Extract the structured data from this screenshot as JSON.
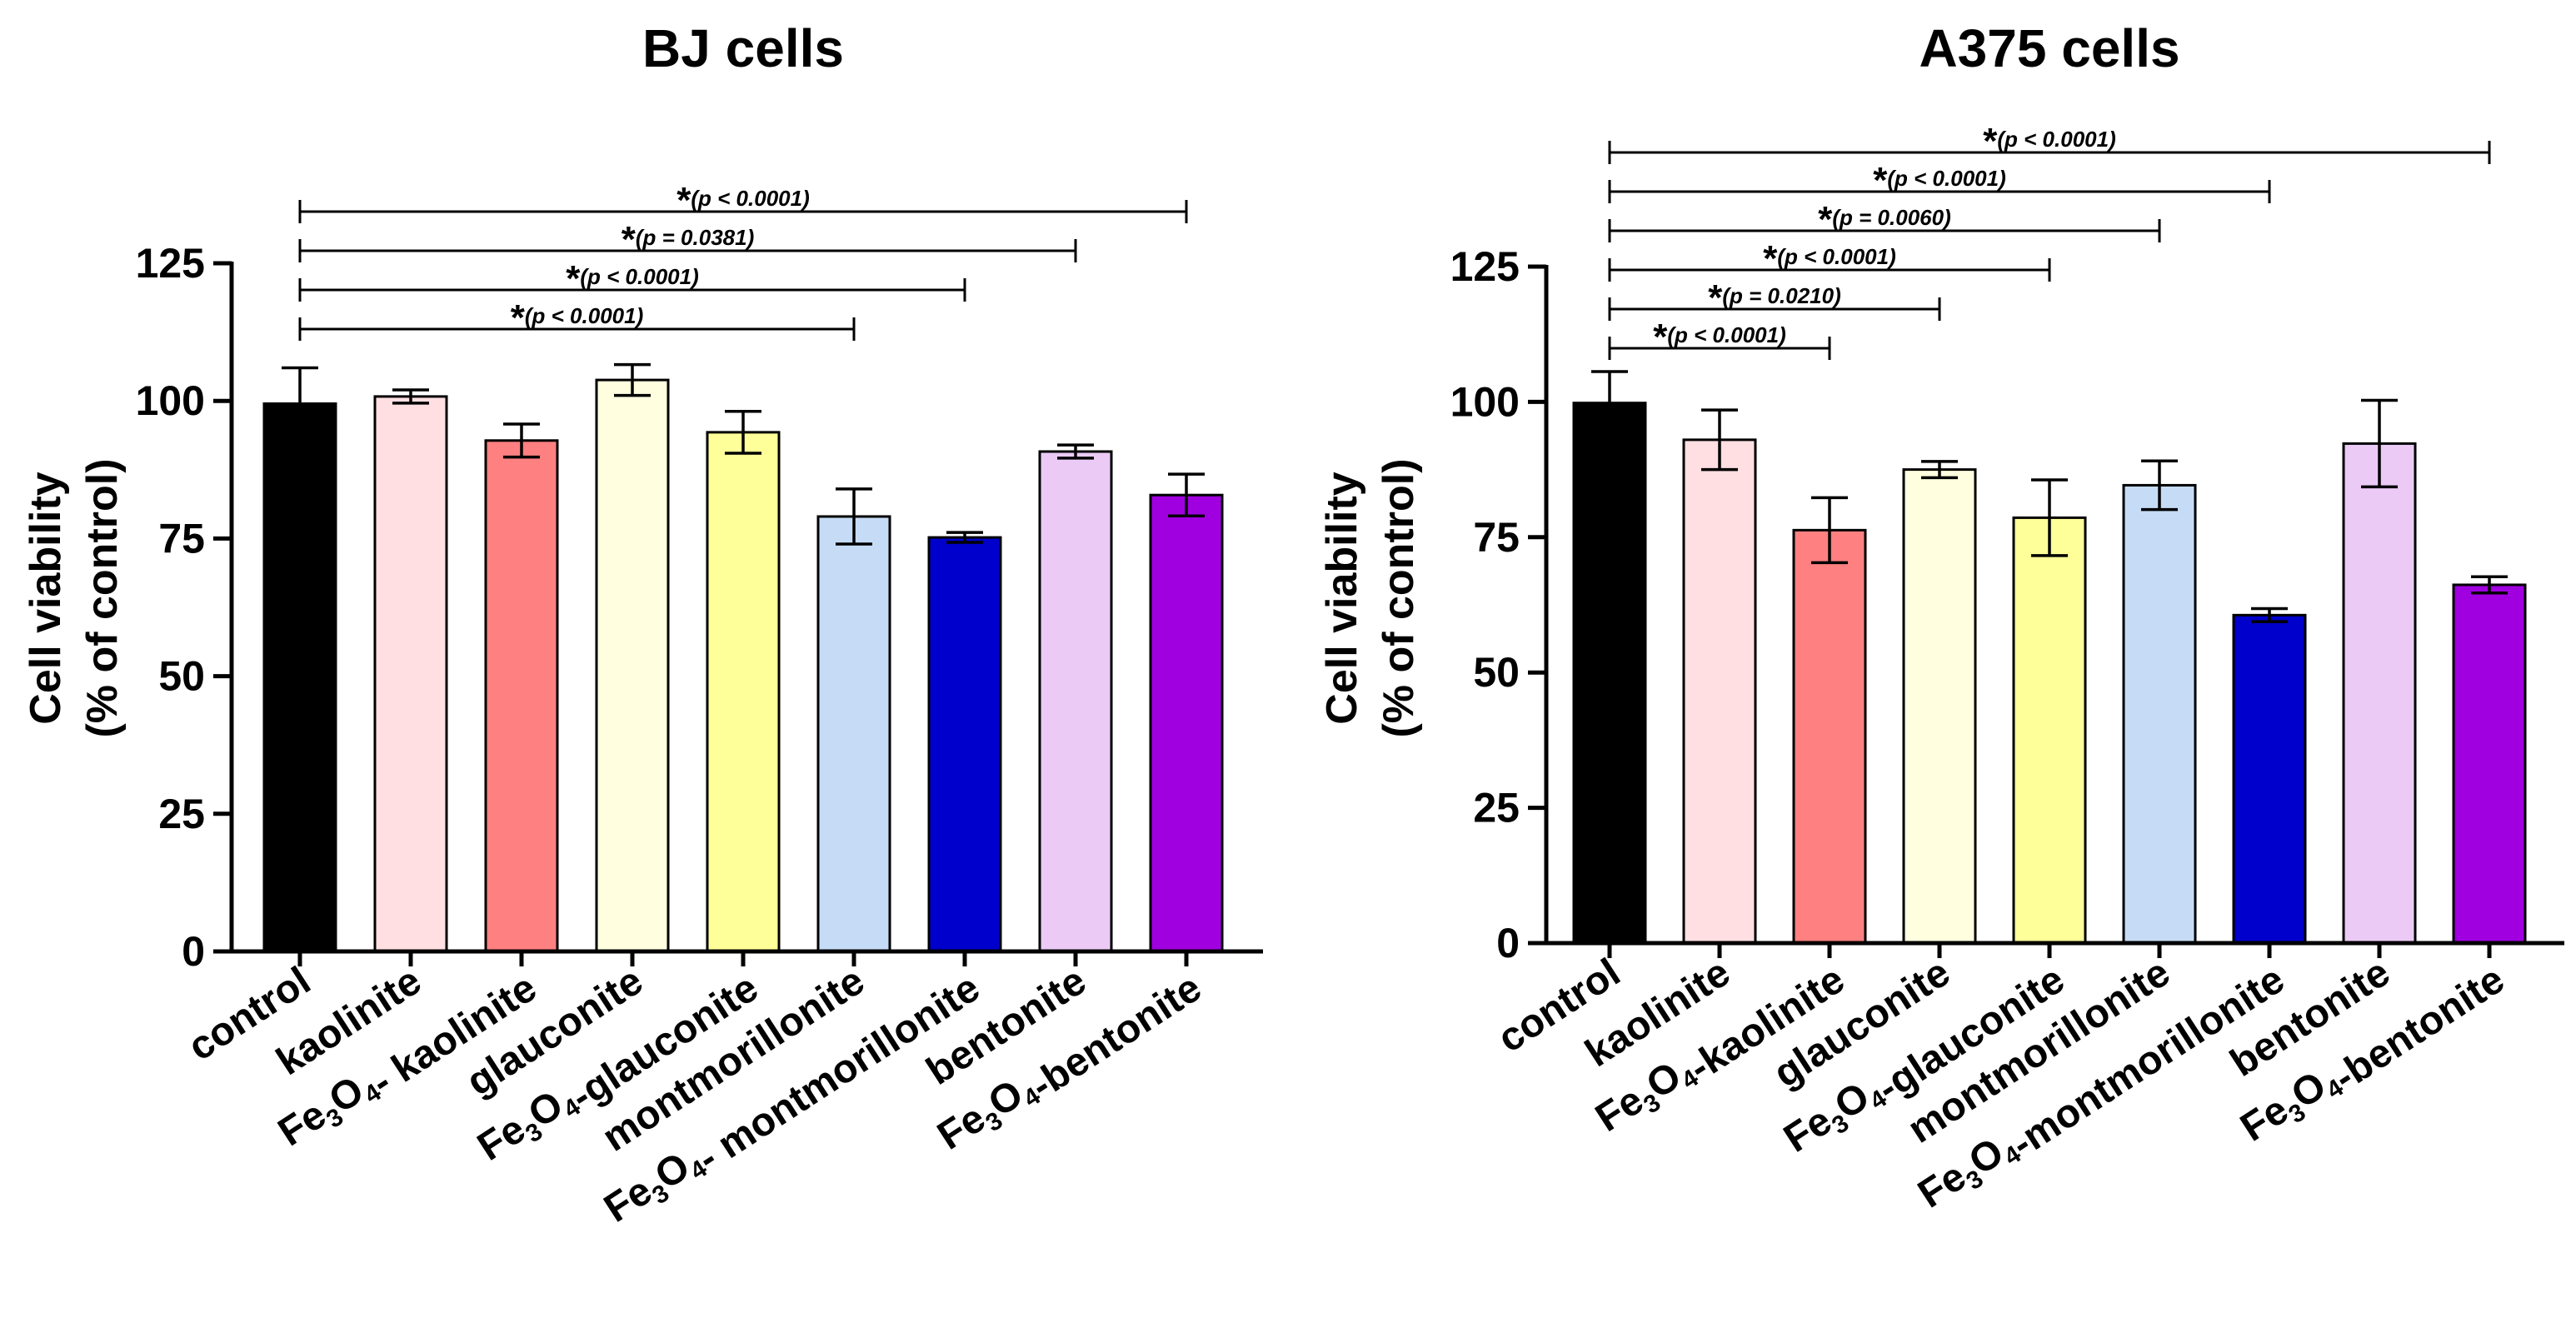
{
  "chart_data": [
    {
      "type": "bar",
      "title": "BJ cells",
      "ylabel_line1": "Cell viability",
      "ylabel_line2": "(% of control)",
      "ylim": [
        0,
        125
      ],
      "yticks": [
        "0",
        "25",
        "50",
        "75",
        "100",
        "125"
      ],
      "categories": [
        "control",
        "kaolinite",
        "Fe3O4- kaolinite",
        "glauconite",
        "Fe3O4-glauconite",
        "montmorillonite",
        "Fe3O4- montmorillonite",
        "bentonite",
        "Fe3O4-bentonite"
      ],
      "values": [
        99.5,
        100.8,
        92.8,
        103.8,
        94.3,
        79.0,
        75.2,
        90.8,
        82.9
      ],
      "errors": [
        6.5,
        1.2,
        3.0,
        2.8,
        3.8,
        5.0,
        0.9,
        1.2,
        3.8
      ],
      "colors": [
        "#000000",
        "#ffdfe2",
        "#ff8080",
        "#ffffe0",
        "#ffff99",
        "#c6dcf6",
        "#0000cc",
        "#ebcbf6",
        "#a000e0"
      ],
      "comparisons": [
        {
          "from": 0,
          "to": 5,
          "star": "*",
          "text": "(p < 0.0001)"
        },
        {
          "from": 0,
          "to": 6,
          "star": "*",
          "text": "(p < 0.0001)"
        },
        {
          "from": 0,
          "to": 7,
          "star": "*",
          "text": "(p = 0.0381)"
        },
        {
          "from": 0,
          "to": 8,
          "star": "*",
          "text": "(p < 0.0001)"
        }
      ]
    },
    {
      "type": "bar",
      "title": "A375 cells",
      "ylabel_line1": "Cell viability",
      "ylabel_line2": "(% of control)",
      "ylim": [
        0,
        125
      ],
      "yticks": [
        "0",
        "25",
        "50",
        "75",
        "100",
        "125"
      ],
      "categories": [
        "control",
        "kaolinite",
        "Fe3O4-kaolinite",
        "glauconite",
        "Fe3O4-glauconite",
        "montmorillonite",
        "Fe3O4-montmorillonite",
        "bentonite",
        "Fe3O4-bentonite"
      ],
      "values": [
        99.8,
        93.0,
        76.3,
        87.5,
        78.6,
        84.6,
        60.6,
        92.3,
        66.2
      ],
      "errors": [
        5.8,
        5.5,
        6.0,
        1.5,
        7.0,
        4.5,
        1.2,
        8.0,
        1.5
      ],
      "colors": [
        "#000000",
        "#ffdfe2",
        "#ff8080",
        "#ffffe0",
        "#ffff99",
        "#c6dcf6",
        "#0000cc",
        "#ebcbf6",
        "#a000e0"
      ],
      "comparisons": [
        {
          "from": 0,
          "to": 2,
          "star": "*",
          "text": "(p < 0.0001)"
        },
        {
          "from": 0,
          "to": 3,
          "star": "*",
          "text": "(p = 0.0210)"
        },
        {
          "from": 0,
          "to": 4,
          "star": "*",
          "text": "(p < 0.0001)"
        },
        {
          "from": 0,
          "to": 5,
          "star": "*",
          "text": "(p = 0.0060)"
        },
        {
          "from": 0,
          "to": 6,
          "star": "*",
          "text": "(p < 0.0001)"
        },
        {
          "from": 0,
          "to": 8,
          "star": "*",
          "text": "(p < 0.0001)"
        }
      ]
    }
  ]
}
